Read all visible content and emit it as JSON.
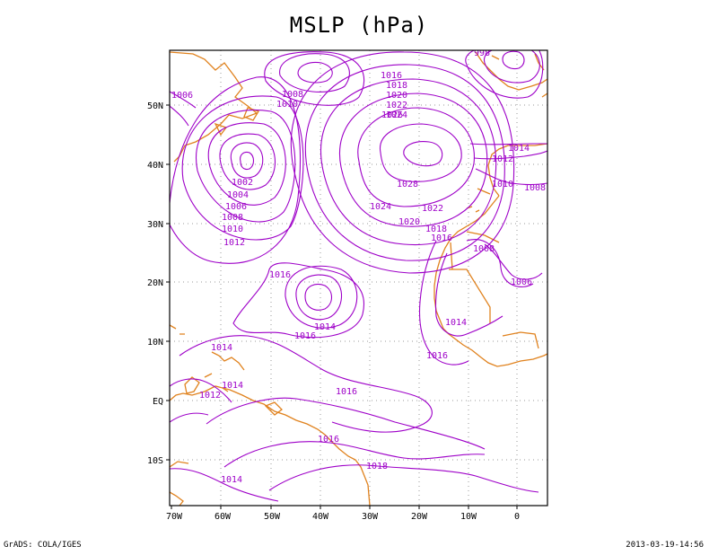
{
  "title": "MSLP (hPa)",
  "footer": {
    "left": "GrADS: COLA/IGES",
    "right": "2013-03-19-14:56"
  },
  "colors": {
    "contour": "#9e00c8",
    "coast": "#e0821e",
    "grid": "#9a9a9a",
    "frame": "#000000"
  },
  "axes": {
    "x_ticks": [
      "70W",
      "60W",
      "50W",
      "40W",
      "30W",
      "20W",
      "10W",
      "0"
    ],
    "y_ticks": [
      "50N",
      "40N",
      "30N",
      "20N",
      "10N",
      "EQ",
      "10S"
    ]
  },
  "contour_labels": [
    "1016",
    "1018",
    "1020",
    "1022",
    "1024",
    "1026",
    "1008",
    "1010",
    "1006",
    "998",
    "1028",
    "1002",
    "1004",
    "1006",
    "1008",
    "1010",
    "1012",
    "1024",
    "1020",
    "1022",
    "1018",
    "1016",
    "1014",
    "1012",
    "1010",
    "1008",
    "1008",
    "1006",
    "1016",
    "1014",
    "1016",
    "1014",
    "1014",
    "1016",
    "1012",
    "1014",
    "1016",
    "1016",
    "1018",
    "1014"
  ]
}
